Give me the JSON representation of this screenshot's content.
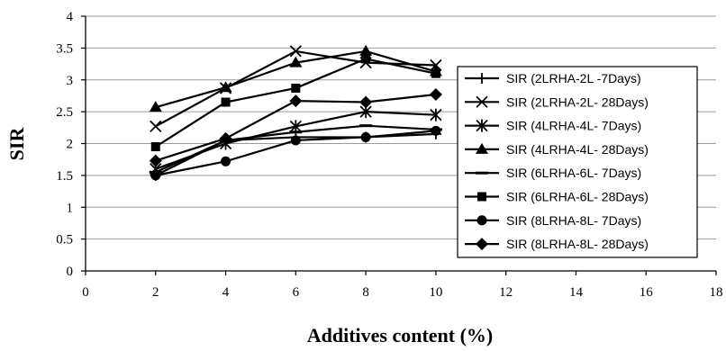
{
  "chart_data": {
    "type": "line",
    "xlabel": "Additives content (%)",
    "ylabel": "SIR",
    "xlim": [
      0,
      18
    ],
    "ylim": [
      0,
      4
    ],
    "xticks": [
      "0",
      "2",
      "4",
      "6",
      "8",
      "10",
      "12",
      "14",
      "16",
      "18"
    ],
    "yticks": [
      "0",
      "0.5",
      "1",
      "1.5",
      "2",
      "2.5",
      "3",
      "3.5",
      "4"
    ],
    "grid": "horizontal",
    "legend_position": "right",
    "x": [
      2,
      4,
      6,
      8,
      10
    ],
    "series": [
      {
        "name": "SIR (2LRHA-2L -7Days)",
        "marker": "plus",
        "values": [
          1.5,
          2.05,
          2.1,
          2.1,
          2.15
        ]
      },
      {
        "name": "SIR (2LRHA-2L- 28Days)",
        "marker": "x",
        "values": [
          2.27,
          2.87,
          3.45,
          3.27,
          3.23
        ]
      },
      {
        "name": "SIR (4LRHA-4L- 7Days)",
        "marker": "asterisk",
        "values": [
          1.6,
          2.0,
          2.27,
          2.5,
          2.45
        ]
      },
      {
        "name": "SIR (4LRHA-4L- 28Days)",
        "marker": "triangle",
        "values": [
          2.57,
          2.88,
          3.27,
          3.45,
          3.13
        ]
      },
      {
        "name": "SIR (6LRHA-6L- 7Days)",
        "marker": "dash",
        "values": [
          1.55,
          2.05,
          2.18,
          2.28,
          2.22
        ]
      },
      {
        "name": "SIR (6LRHA-6L- 28Days)",
        "marker": "square",
        "values": [
          1.95,
          2.65,
          2.87,
          3.33,
          3.1
        ]
      },
      {
        "name": "SIR (8LRHA-8L- 7Days)",
        "marker": "circle",
        "values": [
          1.5,
          1.72,
          2.05,
          2.1,
          2.2
        ]
      },
      {
        "name": "SIR (8LRHA-8L- 28Days)",
        "marker": "diamond",
        "values": [
          1.73,
          2.08,
          2.67,
          2.65,
          2.77
        ]
      }
    ]
  }
}
